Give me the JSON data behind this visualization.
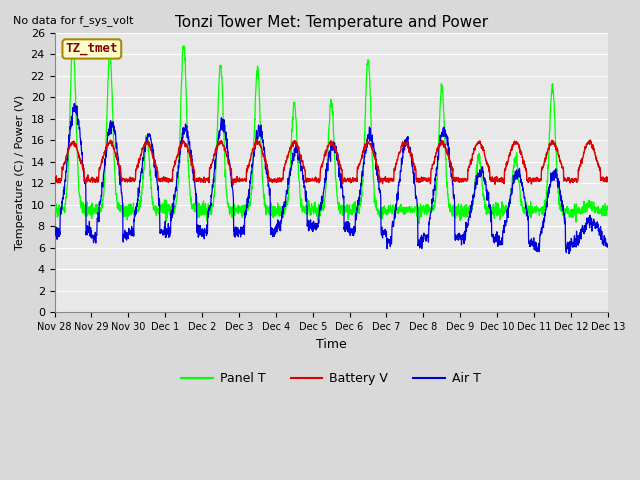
{
  "title": "Tonzi Tower Met: Temperature and Power",
  "top_left_text": "No data for f_sys_volt",
  "ylabel": "Temperature (C) / Power (V)",
  "xlabel": "Time",
  "ylim": [
    0,
    26
  ],
  "yticks": [
    0,
    2,
    4,
    6,
    8,
    10,
    12,
    14,
    16,
    18,
    20,
    22,
    24,
    26
  ],
  "annotation_box": "TZ_tmet",
  "annotation_color": "#880000",
  "annotation_bg": "#ffffcc",
  "annotation_border": "#aa8800",
  "bg_color": "#d9d9d9",
  "plot_bg": "#e8e8e8",
  "grid_color": "#ffffff",
  "panel_t_color": "#00ff00",
  "battery_v_color": "#dd0000",
  "air_t_color": "#0000dd",
  "tick_labels": [
    "Nov 28",
    "Nov 29",
    "Nov 30",
    "Dec 1",
    "Dec 2",
    "Dec 3",
    "Dec 4",
    "Dec 5",
    "Dec 6",
    "Dec 7",
    "Dec 8",
    "Dec 9",
    "Dec 10",
    "Dec 11",
    "Dec 12",
    "Dec 13"
  ],
  "legend_panel": "Panel T",
  "legend_battery": "Battery V",
  "legend_air": "Air T",
  "panel_day_peaks": [
    25.0,
    24.0,
    16.0,
    25.0,
    23.0,
    22.5,
    19.5,
    19.5,
    23.5,
    9.5,
    21.0,
    14.5,
    14.5,
    21.0,
    10.0
  ],
  "air_day_peaks": [
    19.0,
    17.5,
    16.5,
    17.0,
    17.5,
    17.0,
    15.0,
    15.5,
    16.5,
    16.0,
    17.0,
    13.0,
    13.0,
    13.0,
    8.5
  ],
  "air_night_troughs": [
    7.5,
    7.0,
    7.5,
    7.5,
    7.5,
    7.5,
    8.0,
    8.0,
    7.5,
    6.5,
    7.0,
    7.0,
    6.5,
    6.0,
    6.5
  ],
  "panel_night_val": 9.5,
  "battery_base": 12.3,
  "battery_day_bump": 3.5
}
